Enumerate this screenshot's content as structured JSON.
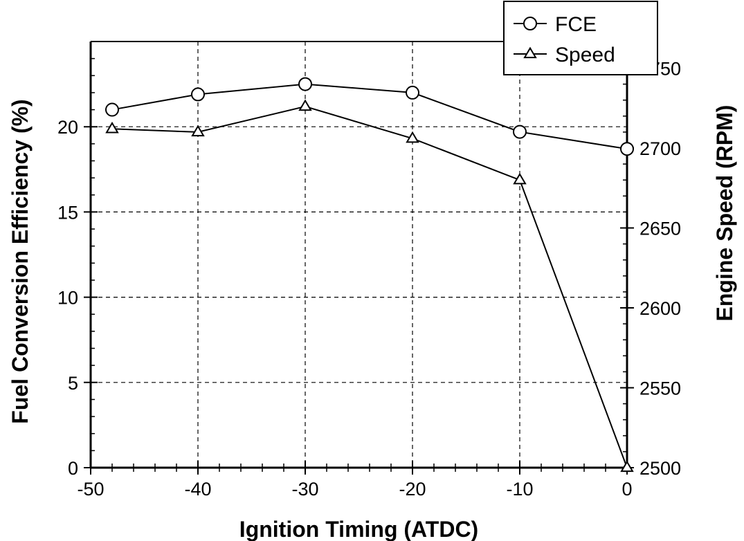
{
  "chart_data": {
    "type": "line",
    "xlabel": "Ignition Timing (ATDC)",
    "ylabel_left": "Fuel Conversion Efficiency (%)",
    "ylabel_right": "Engine Speed (RPM)",
    "xlim": [
      -50,
      0
    ],
    "ylim_left": [
      0,
      25
    ],
    "ylim_right": [
      2500,
      2766.67
    ],
    "x_ticks": [
      "-50",
      "-40",
      "-30",
      "-20",
      "-10",
      "0"
    ],
    "y_left_ticks": [
      "0",
      "5",
      "10",
      "15",
      "20"
    ],
    "y_right_ticks": [
      "2500",
      "2550",
      "2600",
      "2650",
      "2700",
      "2750"
    ],
    "grid": true,
    "legend_position": "top-right",
    "series": [
      {
        "name": "FCE",
        "axis": "left",
        "marker": "circle",
        "x": [
          -48,
          -40,
          -30,
          -20,
          -10,
          0
        ],
        "values": [
          21.0,
          21.9,
          22.5,
          22.0,
          19.7,
          18.7
        ]
      },
      {
        "name": "Speed",
        "axis": "right",
        "marker": "triangle",
        "x": [
          -48,
          -40,
          -30,
          -20,
          -10,
          0
        ],
        "values": [
          2712,
          2710,
          2726,
          2706,
          2680,
          2500
        ]
      }
    ]
  }
}
